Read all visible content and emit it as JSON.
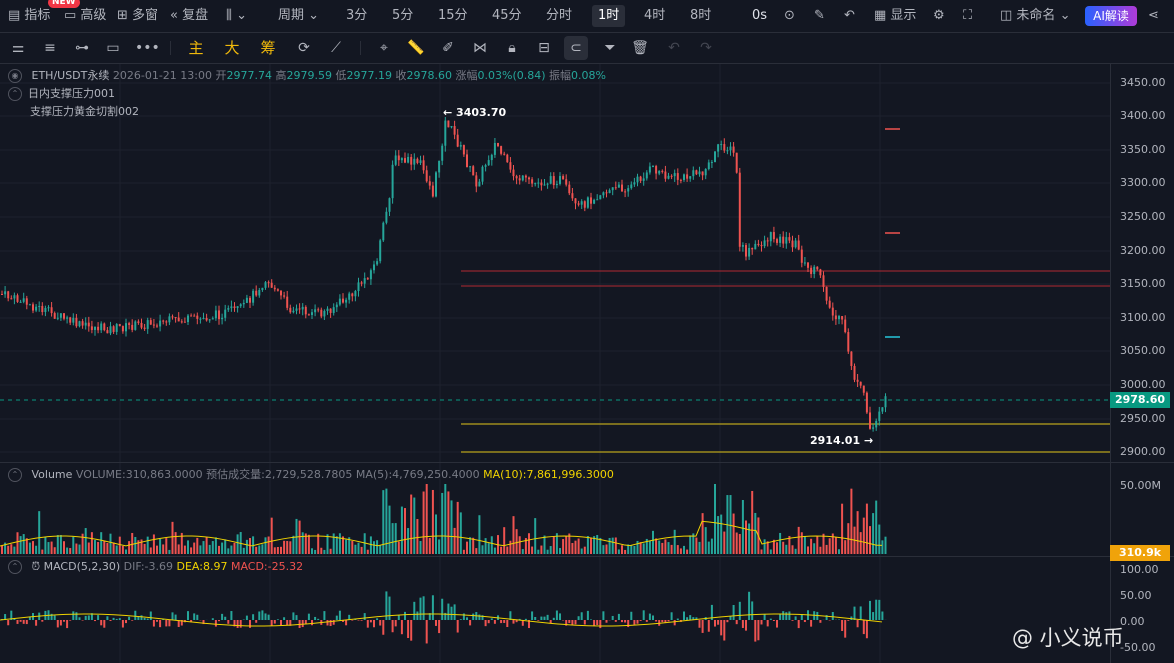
{
  "topbar": {
    "indicators": "指标",
    "new_badge": "NEW",
    "advanced": "高级",
    "multi_window": "多窗",
    "replay": "复盘",
    "period_label": "周期",
    "intervals": [
      "3分",
      "5分",
      "15分",
      "45分",
      "分时",
      "1时",
      "4时",
      "8时"
    ],
    "active_interval": "1时",
    "countdown": "0s",
    "display": "显示",
    "unnamed": "未命名",
    "ai": "AI解读"
  },
  "drawbar": {
    "main": "主",
    "big": "大",
    "chips": "筹"
  },
  "legend": {
    "symbol": "ETH/USDT永续",
    "date": "2026-01-21 13:00",
    "open_label": "开",
    "open": "2977.74",
    "high_label": "高",
    "high": "2979.59",
    "low_label": "低",
    "low": "2977.19",
    "close_label": "收",
    "close": "2978.60",
    "change_label": "涨幅",
    "change": "0.03%(0.84)",
    "amplitude_label": "振幅",
    "amplitude": "0.08%",
    "overlay1": "日内支撑压力001",
    "overlay2": "支撑压力黄金切割002"
  },
  "price_axis": [
    "3450.00",
    "3400.00",
    "3350.00",
    "3300.00",
    "3250.00",
    "3200.00",
    "3150.00",
    "3100.00",
    "3050.00",
    "3000.00",
    "2950.00",
    "2900.00"
  ],
  "current_price": "2978.60",
  "annotations": {
    "high": "3403.70",
    "low": "2914.01"
  },
  "volume": {
    "title": "Volume",
    "volume_label": "VOLUME:310,863.0000",
    "est_label": "预估成交量:2,729,528.7805",
    "ma5_label": "MA(5):4,769,250.4000",
    "ma10_label": "MA(10):7,861,996.3000",
    "axis_top": "50.00M",
    "current": "310.9k"
  },
  "macd": {
    "title": "MACD(5,2,30)",
    "dif": "DIF:-3.69",
    "dea": "DEA:8.97",
    "macd": "MACD:-25.32",
    "axis": [
      "100.00",
      "50.00",
      "0.00",
      "-50.00"
    ]
  },
  "watermark": "@ 小义说币",
  "colors": {
    "up": "#26a69a",
    "down": "#ef5350",
    "bg": "#131722",
    "level_red": "#b22833",
    "level_yellow": "#e0c419",
    "active_price": "#089981"
  }
}
